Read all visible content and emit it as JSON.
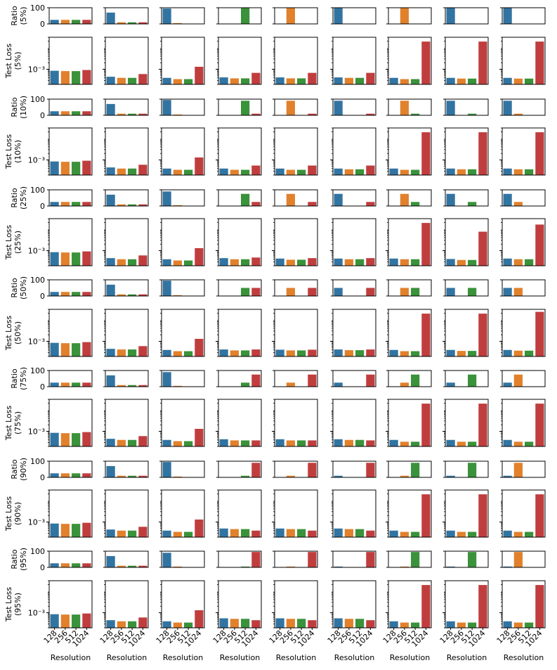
{
  "colors": {
    "128": "#3274a1",
    "256": "#e1812c",
    "512": "#3a923a",
    "1024": "#c03d3e"
  },
  "chart_data": {
    "type": "bar",
    "layout": "grid",
    "columns": 9,
    "categories": [
      "128",
      "256",
      "512",
      "1024"
    ],
    "xlabel": "Resolution",
    "ratio_ylim": [
      0,
      100
    ],
    "ratio_yticks": [
      "0",
      "100"
    ],
    "loss_ytick_label": "10⁻³",
    "loss_ytick_value": 0.001,
    "loss_yscale": "log",
    "loss_ylim": [
      0.0002,
      0.03
    ],
    "rows": [
      {
        "ratio_label": [
          "Ratio",
          "(5%)"
        ],
        "loss_label": [
          "Test Loss",
          "(5%)"
        ],
        "ratio": [
          [
            25,
            25,
            25,
            25
          ],
          [
            70,
            10,
            10,
            10
          ],
          [
            95,
            5,
            0,
            0
          ],
          [
            0,
            0,
            100,
            0
          ],
          [
            0,
            100,
            0,
            0
          ],
          [
            100,
            0,
            0,
            0
          ],
          [
            0,
            100,
            0,
            0
          ],
          [
            100,
            0,
            0,
            0
          ],
          [
            100,
            0,
            0,
            0
          ]
        ],
        "loss": [
          [
            0.00085,
            0.00082,
            0.00082,
            0.00092
          ],
          [
            0.00045,
            0.0004,
            0.0004,
            0.0006
          ],
          [
            0.0004,
            0.00035,
            0.00035,
            0.0013
          ],
          [
            0.00042,
            0.00038,
            0.00038,
            0.00068
          ],
          [
            0.00042,
            0.00038,
            0.00038,
            0.00068
          ],
          [
            0.00042,
            0.0004,
            0.0004,
            0.00068
          ],
          [
            0.0004,
            0.00035,
            0.00035,
            0.019
          ],
          [
            0.0004,
            0.00037,
            0.00037,
            0.019
          ],
          [
            0.0004,
            0.00037,
            0.00037,
            0.019
          ]
        ]
      },
      {
        "ratio_label": [
          "Ratio",
          "(10%)"
        ],
        "loss_label": [
          "Test Loss",
          "(10%)"
        ],
        "ratio": [
          [
            25,
            25,
            25,
            25
          ],
          [
            70,
            10,
            10,
            10
          ],
          [
            95,
            5,
            0,
            0
          ],
          [
            0,
            0,
            90,
            10
          ],
          [
            0,
            90,
            0,
            10
          ],
          [
            90,
            0,
            0,
            10
          ],
          [
            0,
            90,
            10,
            0
          ],
          [
            90,
            0,
            10,
            0
          ],
          [
            90,
            10,
            0,
            0
          ]
        ],
        "loss": [
          [
            0.00085,
            0.00082,
            0.00082,
            0.00092
          ],
          [
            0.00045,
            0.0004,
            0.0004,
            0.0006
          ],
          [
            0.0004,
            0.00035,
            0.00035,
            0.0013
          ],
          [
            0.0004,
            0.00035,
            0.00035,
            0.00055
          ],
          [
            0.0004,
            0.00035,
            0.00035,
            0.00055
          ],
          [
            0.0004,
            0.00037,
            0.00037,
            0.00055
          ],
          [
            0.0004,
            0.00035,
            0.00035,
            0.019
          ],
          [
            0.0004,
            0.00037,
            0.00037,
            0.019
          ],
          [
            0.0004,
            0.00037,
            0.00037,
            0.019
          ]
        ]
      },
      {
        "ratio_label": [
          "Ratio",
          "(25%)"
        ],
        "loss_label": [
          "Test Loss",
          "(25%)"
        ],
        "ratio": [
          [
            25,
            25,
            25,
            25
          ],
          [
            70,
            10,
            10,
            10
          ],
          [
            90,
            5,
            0,
            0
          ],
          [
            0,
            0,
            75,
            25
          ],
          [
            0,
            75,
            0,
            25
          ],
          [
            75,
            0,
            0,
            25
          ],
          [
            0,
            75,
            25,
            0
          ],
          [
            75,
            0,
            25,
            0
          ],
          [
            75,
            25,
            0,
            0
          ]
        ],
        "loss": [
          [
            0.00085,
            0.00082,
            0.00082,
            0.00092
          ],
          [
            0.00045,
            0.0004,
            0.0004,
            0.0006
          ],
          [
            0.0004,
            0.00035,
            0.00035,
            0.0013
          ],
          [
            0.00045,
            0.0004,
            0.0004,
            0.00048
          ],
          [
            0.00043,
            0.00038,
            0.00038,
            0.00045
          ],
          [
            0.00043,
            0.0004,
            0.0004,
            0.00045
          ],
          [
            0.00043,
            0.0004,
            0.0004,
            0.019
          ],
          [
            0.00041,
            0.00037,
            0.00037,
            0.0075
          ],
          [
            0.00043,
            0.0004,
            0.0004,
            0.016
          ]
        ]
      },
      {
        "ratio_label": [
          "Ratio",
          "(50%)"
        ],
        "loss_label": [
          "Test Loss",
          "(50%)"
        ],
        "ratio": [
          [
            25,
            25,
            25,
            25
          ],
          [
            70,
            10,
            10,
            10
          ],
          [
            95,
            5,
            0,
            0
          ],
          [
            0,
            0,
            50,
            50
          ],
          [
            0,
            50,
            0,
            50
          ],
          [
            50,
            0,
            0,
            50
          ],
          [
            0,
            50,
            50,
            0
          ],
          [
            50,
            0,
            50,
            0
          ],
          [
            50,
            50,
            0,
            0
          ]
        ],
        "loss": [
          [
            0.00085,
            0.00082,
            0.00082,
            0.00092
          ],
          [
            0.00045,
            0.00042,
            0.00042,
            0.0006
          ],
          [
            0.0004,
            0.00035,
            0.00035,
            0.0013
          ],
          [
            0.00042,
            0.00038,
            0.00038,
            0.00042
          ],
          [
            0.00041,
            0.00038,
            0.00038,
            0.00041
          ],
          [
            0.00042,
            0.00039,
            0.00039,
            0.00042
          ],
          [
            0.0004,
            0.00035,
            0.00035,
            0.019
          ],
          [
            0.0004,
            0.00036,
            0.00036,
            0.019
          ],
          [
            0.0004,
            0.00037,
            0.00037,
            0.023
          ]
        ]
      },
      {
        "ratio_label": [
          "Ratio",
          "(75%)"
        ],
        "loss_label": [
          "Test Loss",
          "(75%)"
        ],
        "ratio": [
          [
            25,
            25,
            25,
            25
          ],
          [
            70,
            10,
            10,
            10
          ],
          [
            90,
            5,
            0,
            0
          ],
          [
            0,
            0,
            25,
            75
          ],
          [
            0,
            25,
            0,
            75
          ],
          [
            25,
            0,
            0,
            75
          ],
          [
            0,
            25,
            75,
            0
          ],
          [
            25,
            0,
            75,
            0
          ],
          [
            25,
            75,
            0,
            0
          ]
        ],
        "loss": [
          [
            0.00085,
            0.00082,
            0.00082,
            0.00092
          ],
          [
            0.00045,
            0.0004,
            0.0004,
            0.0006
          ],
          [
            0.0004,
            0.00035,
            0.00035,
            0.0013
          ],
          [
            0.00043,
            0.00038,
            0.00038,
            0.00038
          ],
          [
            0.00043,
            0.00038,
            0.00038,
            0.00038
          ],
          [
            0.00043,
            0.0004,
            0.0004,
            0.00038
          ],
          [
            0.0004,
            0.00033,
            0.00033,
            0.019
          ],
          [
            0.0004,
            0.00033,
            0.00033,
            0.019
          ],
          [
            0.0004,
            0.00033,
            0.00033,
            0.019
          ]
        ]
      },
      {
        "ratio_label": [
          "Ratio",
          "(90%)"
        ],
        "loss_label": [
          "Test Loss",
          "(90%)"
        ],
        "ratio": [
          [
            25,
            25,
            25,
            25
          ],
          [
            70,
            10,
            10,
            10
          ],
          [
            95,
            5,
            0,
            0
          ],
          [
            0,
            0,
            10,
            90
          ],
          [
            0,
            10,
            0,
            90
          ],
          [
            10,
            0,
            0,
            90
          ],
          [
            0,
            10,
            90,
            0
          ],
          [
            10,
            0,
            90,
            0
          ],
          [
            10,
            90,
            0,
            0
          ]
        ],
        "loss": [
          [
            0.00085,
            0.00082,
            0.00082,
            0.00092
          ],
          [
            0.00045,
            0.0004,
            0.0004,
            0.0006
          ],
          [
            0.0004,
            0.00035,
            0.00035,
            0.0013
          ],
          [
            0.0005,
            0.00047,
            0.00047,
            0.0004
          ],
          [
            0.0005,
            0.00047,
            0.00047,
            0.0004
          ],
          [
            0.0005,
            0.00047,
            0.00047,
            0.0004
          ],
          [
            0.0004,
            0.00035,
            0.00035,
            0.019
          ],
          [
            0.0004,
            0.00035,
            0.00035,
            0.019
          ],
          [
            0.0004,
            0.00035,
            0.00035,
            0.019
          ]
        ]
      },
      {
        "ratio_label": [
          "Ratio",
          "(95%)"
        ],
        "loss_label": [
          "Test Loss",
          "(95%)"
        ],
        "ratio": [
          [
            25,
            25,
            25,
            25
          ],
          [
            70,
            10,
            10,
            10
          ],
          [
            90,
            5,
            0,
            0
          ],
          [
            0,
            0,
            5,
            95
          ],
          [
            0,
            5,
            0,
            95
          ],
          [
            5,
            0,
            0,
            95
          ],
          [
            0,
            5,
            95,
            0
          ],
          [
            5,
            0,
            95,
            0
          ],
          [
            5,
            95,
            0,
            0
          ]
        ],
        "loss": [
          [
            0.00085,
            0.00082,
            0.00082,
            0.00092
          ],
          [
            0.00045,
            0.0004,
            0.0004,
            0.0006
          ],
          [
            0.0004,
            0.00035,
            0.00035,
            0.0013
          ],
          [
            0.00055,
            0.00052,
            0.00052,
            0.00045
          ],
          [
            0.00055,
            0.00052,
            0.00052,
            0.00045
          ],
          [
            0.00055,
            0.00052,
            0.00052,
            0.00045
          ],
          [
            0.0004,
            0.00035,
            0.00035,
            0.019
          ],
          [
            0.0004,
            0.00035,
            0.00035,
            0.019
          ],
          [
            0.0004,
            0.00035,
            0.00035,
            0.019
          ]
        ]
      }
    ]
  }
}
